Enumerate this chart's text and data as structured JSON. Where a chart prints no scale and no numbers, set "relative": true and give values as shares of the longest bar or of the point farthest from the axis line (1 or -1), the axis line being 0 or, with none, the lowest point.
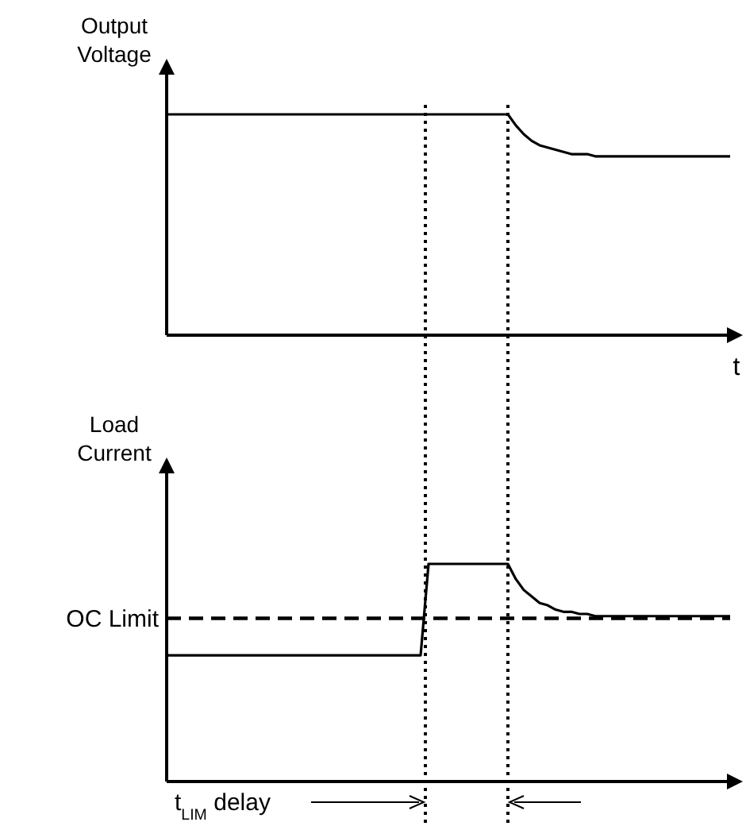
{
  "chart_data": [
    {
      "type": "line",
      "relative": true,
      "ylabel": "Output Voltage",
      "xlabel": "t",
      "line_style": "solid",
      "categories": [
        null,
        null,
        null,
        null,
        null,
        null,
        null,
        null,
        null,
        null,
        null,
        null,
        null,
        null,
        null,
        null,
        null,
        null,
        null,
        null,
        null,
        null,
        null,
        null,
        null,
        null,
        null,
        null,
        null,
        null,
        null,
        null,
        null,
        null,
        null,
        null,
        null,
        null,
        null,
        null,
        null,
        null,
        null,
        null,
        null,
        null,
        null,
        null,
        null,
        null,
        null,
        null,
        null,
        null,
        null,
        null,
        null,
        null,
        null,
        null,
        null,
        null,
        null,
        null,
        null,
        null,
        null,
        null,
        null,
        null,
        null,
        null
      ],
      "series": [
        {
          "color": "#000000",
          "values": [
            1,
            1,
            1,
            1,
            1,
            1,
            1,
            1,
            1,
            1,
            1,
            1,
            1,
            1,
            1,
            1,
            1,
            1,
            1,
            1,
            1,
            1,
            1,
            1,
            1,
            1,
            1,
            1,
            1,
            1,
            1,
            1,
            1,
            1,
            1,
            1,
            1,
            1,
            1,
            1,
            1,
            1,
            1,
            1,
            0.95,
            0.91,
            0.88,
            0.86,
            0.85,
            0.84,
            0.83,
            0.82,
            0.82,
            0.82,
            0.81,
            0.81,
            0.81,
            0.81,
            0.81,
            0.81,
            0.81,
            0.81,
            0.81,
            0.81,
            0.81,
            0.81,
            0.81,
            0.81,
            0.81,
            0.81,
            0.81,
            0.81
          ]
        }
      ]
    },
    {
      "type": "line",
      "relative": true,
      "ylabel": "Load Current",
      "line_style": "solid",
      "categories": [
        null,
        null,
        null,
        null,
        null,
        null,
        null,
        null,
        null,
        null,
        null,
        null,
        null,
        null,
        null,
        null,
        null,
        null,
        null,
        null,
        null,
        null,
        null,
        null,
        null,
        null,
        null,
        null,
        null,
        null,
        null,
        null,
        null,
        null,
        null,
        null,
        null,
        null,
        null,
        null,
        null,
        null,
        null,
        null,
        null,
        null,
        null,
        null,
        null,
        null,
        null,
        null,
        null,
        null,
        null,
        null,
        null,
        null,
        null,
        null,
        null,
        null,
        null,
        null,
        null,
        null,
        null,
        null,
        null,
        null,
        null,
        null
      ],
      "series": [
        {
          "color": "#000000",
          "values": [
            0.58,
            0.58,
            0.58,
            0.58,
            0.58,
            0.58,
            0.58,
            0.58,
            0.58,
            0.58,
            0.58,
            0.58,
            0.58,
            0.58,
            0.58,
            0.58,
            0.58,
            0.58,
            0.58,
            0.58,
            0.58,
            0.58,
            0.58,
            0.58,
            0.58,
            0.58,
            0.58,
            0.58,
            0.58,
            0.58,
            0.58,
            0.58,
            0.58,
            1,
            1,
            1,
            1,
            1,
            1,
            1,
            1,
            1,
            1,
            1,
            0.93,
            0.88,
            0.85,
            0.82,
            0.81,
            0.79,
            0.78,
            0.78,
            0.77,
            0.77,
            0.76,
            0.76,
            0.76,
            0.76,
            0.76,
            0.76,
            0.76,
            0.76,
            0.76,
            0.76,
            0.76,
            0.76,
            0.76,
            0.76,
            0.76,
            0.76,
            0.76,
            0.76
          ]
        }
      ],
      "ref_lines": [
        {
          "axis": "y",
          "value": 0.75,
          "label": "OC Limit",
          "line_style": "dashed",
          "color": "#000000"
        }
      ],
      "annotations": [
        "t$_{LIM}$ delay"
      ]
    }
  ]
}
